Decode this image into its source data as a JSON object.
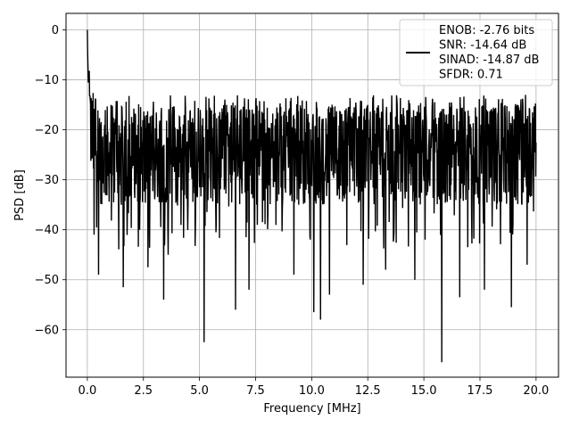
{
  "chart_data": {
    "type": "line",
    "title": "",
    "xlabel": "Frequency [MHz]",
    "ylabel": "PSD [dB]",
    "xlim": [
      -0.95,
      21.0
    ],
    "ylim": [
      -69.5,
      3.3
    ],
    "xticks": [
      0.0,
      2.5,
      5.0,
      7.5,
      10.0,
      12.5,
      15.0,
      17.5,
      20.0
    ],
    "xtick_labels": [
      "0.0",
      "2.5",
      "5.0",
      "7.5",
      "10.0",
      "12.5",
      "15.0",
      "17.5",
      "20.0"
    ],
    "yticks": [
      0,
      -10,
      -20,
      -30,
      -40,
      -50,
      -60
    ],
    "ytick_labels": [
      "0",
      "−10",
      "−20",
      "−30",
      "−40",
      "−50",
      "−60"
    ],
    "grid": true,
    "legend_position": "top-right",
    "series": [
      {
        "color": "#000000",
        "x_range": [
          0.0,
          20.0
        ],
        "noise_floor_mean": -25,
        "noise_upper": -13,
        "peak_start": 0.5,
        "dips": [
          {
            "x": 0.3,
            "y": -41
          },
          {
            "x": 0.5,
            "y": -49
          },
          {
            "x": 1.6,
            "y": -51.5
          },
          {
            "x": 2.7,
            "y": -47.5
          },
          {
            "x": 3.4,
            "y": -54
          },
          {
            "x": 3.6,
            "y": -45
          },
          {
            "x": 5.2,
            "y": -62.5
          },
          {
            "x": 6.6,
            "y": -56
          },
          {
            "x": 7.2,
            "y": -52
          },
          {
            "x": 9.2,
            "y": -49
          },
          {
            "x": 10.1,
            "y": -56.5
          },
          {
            "x": 10.4,
            "y": -58
          },
          {
            "x": 10.8,
            "y": -53
          },
          {
            "x": 12.3,
            "y": -51
          },
          {
            "x": 13.3,
            "y": -48
          },
          {
            "x": 14.6,
            "y": -50
          },
          {
            "x": 15.8,
            "y": -66.5
          },
          {
            "x": 16.6,
            "y": -53.5
          },
          {
            "x": 17.7,
            "y": -52
          },
          {
            "x": 18.9,
            "y": -55.5
          },
          {
            "x": 19.6,
            "y": -47
          }
        ]
      }
    ],
    "legend": [
      "ENOB: -2.76 bits",
      "SNR: -14.64 dB",
      "SINAD: -14.87 dB",
      "SFDR: 0.71"
    ]
  }
}
